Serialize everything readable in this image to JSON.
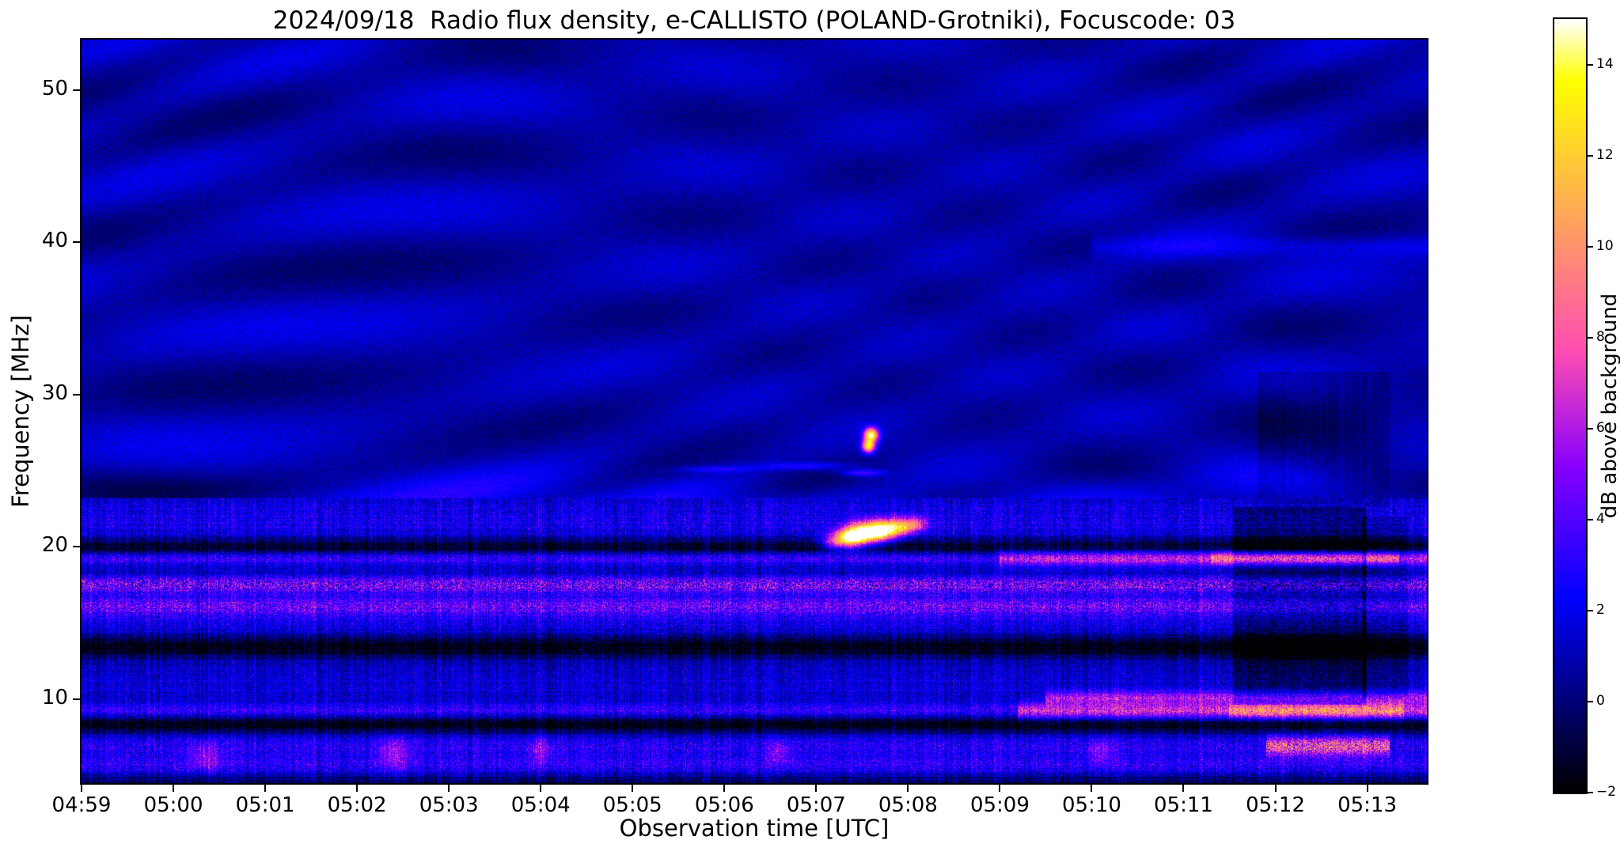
{
  "chart_data": {
    "type": "heatmap",
    "subtype": "radio-spectrogram",
    "title": "2024/09/18  Radio flux density, e-CALLISTO (POLAND-Grotniki), Focuscode: 03",
    "meta": {
      "date": "2024/09/18",
      "instrument": "e-CALLISTO",
      "station": "POLAND-Grotniki",
      "focuscode": "03"
    },
    "xlabel": "Observation time [UTC]",
    "ylabel": "Frequency [MHz]",
    "colorbar_label": "dB above background",
    "x_axis": {
      "start_minutes": 0,
      "end_minutes": 14.65,
      "start_time": "04:59",
      "ticks": [
        {
          "minute": 0,
          "label": "04:59"
        },
        {
          "minute": 1,
          "label": "05:00"
        },
        {
          "minute": 2,
          "label": "05:01"
        },
        {
          "minute": 3,
          "label": "05:02"
        },
        {
          "minute": 4,
          "label": "05:03"
        },
        {
          "minute": 5,
          "label": "05:04"
        },
        {
          "minute": 6,
          "label": "05:05"
        },
        {
          "minute": 7,
          "label": "05:06"
        },
        {
          "minute": 8,
          "label": "05:07"
        },
        {
          "minute": 9,
          "label": "05:08"
        },
        {
          "minute": 10,
          "label": "05:09"
        },
        {
          "minute": 11,
          "label": "05:10"
        },
        {
          "minute": 12,
          "label": "05:11"
        },
        {
          "minute": 13,
          "label": "05:12"
        },
        {
          "minute": 14,
          "label": "05:13"
        }
      ]
    },
    "y_axis": {
      "min_mhz": 4.5,
      "max_mhz": 53.3,
      "ticks": [
        {
          "value": 10,
          "label": "10"
        },
        {
          "value": 20,
          "label": "20"
        },
        {
          "value": 30,
          "label": "30"
        },
        {
          "value": 40,
          "label": "40"
        },
        {
          "value": 50,
          "label": "50"
        }
      ]
    },
    "colorbar": {
      "min_db": -2,
      "max_db": 15,
      "colormap": "gnuplot2",
      "colormap_stops": [
        "#000000",
        "#0000b4",
        "#5a00e6",
        "#c000c0",
        "#ff4b87",
        "#ff9632",
        "#ffe100",
        "#ffffff"
      ],
      "ticks": [
        {
          "value": -2,
          "label": "−2"
        },
        {
          "value": 0,
          "label": "0"
        },
        {
          "value": 2,
          "label": "2"
        },
        {
          "value": 4,
          "label": "4"
        },
        {
          "value": 6,
          "label": "6"
        },
        {
          "value": 8,
          "label": "8"
        },
        {
          "value": 10,
          "label": "10"
        },
        {
          "value": 12,
          "label": "12"
        },
        {
          "value": 14,
          "label": "14"
        }
      ]
    },
    "background": {
      "base_db": 0.9,
      "noise_db": 0.65,
      "ripple_db": 1.0,
      "ripple_min_mhz": 23.2
    },
    "bands": [
      {
        "f": 4.6,
        "hw": 0.35,
        "db": -1.5,
        "t0": 0,
        "t1": 14.65,
        "sp": 0.3
      },
      {
        "f": 5.6,
        "hw": 0.5,
        "db": 1.8,
        "t0": 0,
        "t1": 14.65,
        "sp": 1.6
      },
      {
        "f": 6.9,
        "hw": 0.5,
        "db": 1.7,
        "t0": 0,
        "t1": 14.65,
        "sp": 1.7
      },
      {
        "f": 6.9,
        "hw": 0.45,
        "db": 5.0,
        "t0": 12.9,
        "t1": 14.25,
        "sp": 1.0
      },
      {
        "f": 8.35,
        "hw": 0.4,
        "db": -3.0,
        "t0": 0,
        "t1": 14.65,
        "sp": 0.2
      },
      {
        "f": 9.2,
        "hw": 0.35,
        "db": 2.4,
        "t0": 0,
        "t1": 10.2,
        "sp": 1.2
      },
      {
        "f": 9.2,
        "hw": 0.4,
        "db": 6.0,
        "t0": 10.2,
        "t1": 14.65,
        "sp": 0.7
      },
      {
        "f": 9.2,
        "hw": 0.35,
        "db": 3.0,
        "t0": 12.5,
        "t1": 14.4,
        "sp": 0.5
      },
      {
        "f": 10.1,
        "hw": 0.3,
        "db": 4.0,
        "t0": 10.5,
        "t1": 14.65,
        "sp": 0.9
      },
      {
        "f": 11.3,
        "hw": 1.1,
        "db": 0.7,
        "t0": 0,
        "t1": 14.65,
        "sp": 1.2
      },
      {
        "f": 13.4,
        "hw": 0.5,
        "db": -3.2,
        "t0": 0,
        "t1": 14.65,
        "sp": 0.15
      },
      {
        "f": 15.6,
        "hw": 1.1,
        "db": 1.2,
        "t0": 0,
        "t1": 14.65,
        "sp": 1.8
      },
      {
        "f": 16.1,
        "hw": 0.45,
        "db": 2.0,
        "t0": 0,
        "t1": 14.65,
        "sp": 2.4
      },
      {
        "f": 17.5,
        "hw": 0.4,
        "db": 3.0,
        "t0": 0,
        "t1": 14.65,
        "sp": 2.4
      },
      {
        "f": 19.25,
        "hw": 0.3,
        "db": 2.8,
        "t0": 0,
        "t1": 10.0,
        "sp": 1.1
      },
      {
        "f": 19.25,
        "hw": 0.35,
        "db": 6.0,
        "t0": 10.0,
        "t1": 14.65,
        "sp": 0.6
      },
      {
        "f": 19.25,
        "hw": 0.3,
        "db": 3.0,
        "t0": 12.3,
        "t1": 14.35,
        "sp": 0.5
      },
      {
        "f": 19.95,
        "hw": 0.45,
        "db": -3.0,
        "t0": 0,
        "t1": 14.65,
        "sp": 0.2
      },
      {
        "f": 21.7,
        "hw": 1.2,
        "db": 1.3,
        "t0": 0,
        "t1": 14.65,
        "sp": 1.5
      },
      {
        "f": 39.7,
        "hw": 0.5,
        "db": 1.1,
        "t0": 11.0,
        "t1": 14.65,
        "sp": 0.5
      }
    ],
    "bursts": [
      {
        "t": 8.2,
        "f": 20.3,
        "wt": 0.1,
        "wf": 0.35,
        "db": 6
      },
      {
        "t": 8.37,
        "f": 20.6,
        "wt": 0.11,
        "wf": 0.45,
        "db": 12
      },
      {
        "t": 8.55,
        "f": 20.9,
        "wt": 0.13,
        "wf": 0.5,
        "db": 13
      },
      {
        "t": 8.74,
        "f": 21.1,
        "wt": 0.1,
        "wf": 0.45,
        "db": 11
      },
      {
        "t": 8.93,
        "f": 21.3,
        "wt": 0.09,
        "wf": 0.4,
        "db": 8.5
      },
      {
        "t": 9.1,
        "f": 21.5,
        "wt": 0.08,
        "wf": 0.35,
        "db": 5.5
      },
      {
        "t": 8.57,
        "f": 26.6,
        "wt": 0.05,
        "wf": 0.3,
        "db": 12
      },
      {
        "t": 8.6,
        "f": 27.35,
        "wt": 0.055,
        "wf": 0.33,
        "db": 13.5
      },
      {
        "t": 8.5,
        "f": 24.85,
        "wt": 0.16,
        "wf": 0.16,
        "db": 3.5
      },
      {
        "t": 7.9,
        "f": 25.3,
        "wt": 0.35,
        "wf": 0.18,
        "db": 2.4
      },
      {
        "t": 6.9,
        "f": 25.1,
        "wt": 0.3,
        "wf": 0.15,
        "db": 2.0
      },
      {
        "t": 1.35,
        "f": 6.2,
        "wt": 0.12,
        "wf": 0.7,
        "db": 2.8
      },
      {
        "t": 3.4,
        "f": 6.4,
        "wt": 0.12,
        "wf": 0.8,
        "db": 3.0
      },
      {
        "t": 5.0,
        "f": 6.6,
        "wt": 0.1,
        "wf": 0.7,
        "db": 2.6
      },
      {
        "t": 7.6,
        "f": 6.5,
        "wt": 0.09,
        "wf": 0.6,
        "db": 2.4
      },
      {
        "t": 11.1,
        "f": 6.6,
        "wt": 0.1,
        "wf": 0.6,
        "db": 2.6
      }
    ],
    "dark_patches": [
      {
        "t0": 12.55,
        "t1": 14.0,
        "f0": 9.6,
        "f1": 22.6,
        "db": -2.0
      },
      {
        "t0": 12.8,
        "t1": 14.25,
        "f0": 22.6,
        "f1": 31.5,
        "db": -0.7
      },
      {
        "t0": 13.95,
        "t1": 14.45,
        "f0": 10.0,
        "f1": 22.0,
        "db": -1.2
      }
    ]
  }
}
